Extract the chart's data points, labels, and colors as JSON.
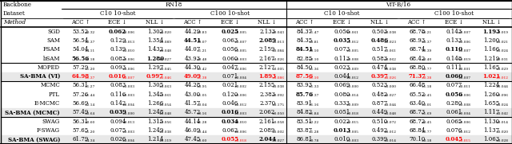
{
  "groups": [
    {
      "methods": [
        "SGD",
        "SAM",
        "FSAM",
        "bSAM"
      ],
      "data": [
        [
          "53.52",
          "0.32",
          "0.062",
          "0.006",
          "1.302",
          "0.020",
          "44.29",
          "0.83",
          "0.025",
          "0.005",
          "2.133",
          "0.043",
          "84.37",
          "1.47",
          "0.056",
          "0.061",
          "0.503",
          "0.038",
          "68.78",
          "0.21",
          "0.143",
          "0.007",
          "1.193",
          "0.019"
        ],
        [
          "56.54",
          "2.37",
          "0.129",
          "0.013",
          "1.354",
          "0.089",
          "44.51",
          "0.07",
          "0.063",
          "0.007",
          "2.089",
          "0.013",
          "84.35",
          "0.81",
          "0.035",
          "0.012",
          "0.486",
          "0.023",
          "68.93",
          "0.37",
          "0.133",
          "0.006",
          "1.200",
          "0.021"
        ],
        [
          "54.04",
          "4.11",
          "0.139",
          "0.010",
          "1.432",
          "0.048",
          "44.07",
          "1.21",
          "0.056",
          "0.005",
          "2.159",
          "0.084",
          "84.51",
          "0.50",
          "0.073",
          "0.005",
          "0.517",
          "0.061",
          "68.74",
          "0.39",
          "0.110",
          "0.007",
          "1.166",
          "0.024"
        ],
        [
          "56.56",
          "1.18",
          "0.083",
          "0.006",
          "1.280",
          "0.027",
          "43.93",
          "0.48",
          "0.060",
          "0.003",
          "2.167",
          "0.026",
          "82.85",
          "2.10",
          "0.113",
          "0.008",
          "0.583",
          "0.062",
          "68.42",
          "0.40",
          "0.148",
          "0.019",
          "1.219",
          "0.031"
        ]
      ],
      "bold": [
        [
          false,
          false,
          true,
          false,
          false,
          false,
          false,
          false,
          true,
          false,
          false,
          false,
          false,
          false,
          false,
          false,
          false,
          false,
          false,
          false,
          false,
          false,
          true,
          false
        ],
        [
          false,
          false,
          false,
          false,
          false,
          false,
          true,
          false,
          false,
          false,
          true,
          false,
          false,
          false,
          true,
          false,
          true,
          false,
          false,
          false,
          false,
          false,
          false,
          false
        ],
        [
          false,
          false,
          false,
          false,
          false,
          false,
          false,
          false,
          false,
          false,
          false,
          false,
          true,
          false,
          false,
          false,
          false,
          false,
          false,
          false,
          true,
          false,
          false,
          false
        ],
        [
          true,
          false,
          false,
          false,
          true,
          false,
          false,
          false,
          false,
          false,
          false,
          false,
          false,
          false,
          false,
          false,
          false,
          false,
          false,
          false,
          false,
          false,
          false,
          false
        ]
      ],
      "red": [
        [
          false,
          false,
          false,
          false,
          false,
          false,
          false,
          false,
          false,
          false,
          false,
          false,
          false,
          false,
          false,
          false,
          false,
          false,
          false,
          false,
          false,
          false,
          false,
          false
        ],
        [
          false,
          false,
          false,
          false,
          false,
          false,
          false,
          false,
          false,
          false,
          false,
          false,
          false,
          false,
          false,
          false,
          false,
          false,
          false,
          false,
          false,
          false,
          false,
          false
        ],
        [
          false,
          false,
          false,
          false,
          false,
          false,
          false,
          false,
          false,
          false,
          false,
          false,
          false,
          false,
          false,
          false,
          false,
          false,
          false,
          false,
          false,
          false,
          false,
          false
        ],
        [
          false,
          false,
          false,
          false,
          false,
          false,
          false,
          false,
          false,
          false,
          false,
          false,
          false,
          false,
          false,
          false,
          false,
          false,
          false,
          false,
          false,
          false,
          false,
          false
        ]
      ]
    },
    {
      "methods": [
        "MOPED",
        "SA-BMA (VI)"
      ],
      "data": [
        [
          "57.29",
          "1.20",
          "0.093",
          "0.006",
          "1.297",
          "0.045",
          "44.30",
          "0.42",
          "0.047",
          "0.006",
          "2.127",
          "0.005",
          "84.50",
          "1.36",
          "0.023",
          "0.009",
          "0.474",
          "0.038",
          "68.80",
          "0.77",
          "0.111",
          "0.001",
          "1.165",
          "0.029"
        ],
        [
          "64.98",
          "1.37",
          "0.016",
          "0.007",
          "0.997",
          "0.046",
          "49.09",
          "1.38",
          "0.071",
          "0.004",
          "1.893",
          "0.086",
          "87.56",
          "1.10",
          "0.044",
          "0.012",
          "0.397",
          "0.026",
          "71.37",
          "0.38",
          "0.060",
          "0.007",
          "1.021",
          "0.012"
        ]
      ],
      "bold": [
        [
          false,
          false,
          false,
          false,
          false,
          false,
          false,
          false,
          false,
          false,
          false,
          false,
          false,
          false,
          false,
          false,
          false,
          false,
          false,
          false,
          false,
          false,
          false,
          false
        ],
        [
          false,
          false,
          false,
          false,
          false,
          false,
          false,
          false,
          false,
          false,
          false,
          false,
          false,
          false,
          false,
          false,
          false,
          false,
          false,
          false,
          true,
          false,
          false,
          false
        ]
      ],
      "red": [
        [
          false,
          false,
          false,
          false,
          false,
          false,
          false,
          false,
          false,
          false,
          false,
          false,
          false,
          false,
          false,
          false,
          false,
          false,
          false,
          false,
          false,
          false,
          false,
          false
        ],
        [
          true,
          false,
          true,
          false,
          true,
          false,
          true,
          false,
          false,
          false,
          true,
          false,
          true,
          false,
          false,
          false,
          true,
          false,
          true,
          false,
          false,
          false,
          true,
          false
        ]
      ]
    },
    {
      "methods": [
        "MCMC",
        "PTL",
        "E-MCMC",
        "SA-BMA (MCMC)"
      ],
      "data": [
        [
          "56.31",
          "1.27",
          "0.083",
          "0.003",
          "1.305",
          "0.063",
          "44.28",
          "0.95",
          "0.021",
          "0.002",
          "2.155",
          "0.038",
          "83.93",
          "1.33",
          "0.069",
          "0.000",
          "0.523",
          "0.000",
          "66.48",
          "1.18",
          "0.077",
          "0.011",
          "1.224",
          "0.044"
        ],
        [
          "57.26",
          "1.44",
          "0.116",
          "0.003",
          "1.345",
          "0.061",
          "43.00",
          "1.05",
          "0.120",
          "0.006",
          "2.383",
          "0.092",
          "85.76",
          "1.37",
          "0.080",
          "0.014",
          "0.482",
          "0.027",
          "65.52",
          "2.45",
          "0.056",
          "0.006",
          "1.260",
          "0.096"
        ],
        [
          "56.69",
          "2.14",
          "0.142",
          "0.004",
          "1.266",
          "0.054",
          "41.57",
          "0.04",
          "0.046",
          "0.012",
          "2.370",
          "0.175",
          "83.91",
          "1.16",
          "0.333",
          "0.009",
          "0.877",
          "0.044",
          "63.40",
          "0.01",
          "0.280",
          "0.008",
          "1.655",
          "0.024"
        ],
        [
          "57.49",
          "0.64",
          "0.039",
          "0.000",
          "1.248",
          "0.048",
          "45.72",
          "0.56",
          "0.016",
          "0.003",
          "2.062",
          "0.050",
          "84.82",
          "1.84",
          "0.051",
          "0.018",
          "0.449",
          "0.048",
          "68.73",
          "1.69",
          "0.061",
          "0.004",
          "1.117",
          "0.042"
        ]
      ],
      "bold": [
        [
          false,
          false,
          false,
          false,
          false,
          false,
          false,
          false,
          false,
          false,
          false,
          false,
          false,
          false,
          false,
          false,
          false,
          false,
          false,
          false,
          false,
          false,
          false,
          false
        ],
        [
          false,
          false,
          false,
          false,
          false,
          false,
          false,
          false,
          false,
          false,
          false,
          false,
          true,
          false,
          false,
          false,
          false,
          false,
          false,
          false,
          true,
          false,
          false,
          false
        ],
        [
          false,
          false,
          false,
          false,
          false,
          false,
          false,
          false,
          false,
          false,
          false,
          false,
          false,
          false,
          false,
          false,
          false,
          false,
          false,
          false,
          false,
          false,
          false,
          false
        ],
        [
          false,
          false,
          true,
          false,
          false,
          false,
          false,
          false,
          true,
          false,
          false,
          false,
          false,
          false,
          false,
          false,
          false,
          false,
          false,
          false,
          false,
          false,
          false,
          false
        ]
      ],
      "red": [
        [
          false,
          false,
          false,
          false,
          false,
          false,
          false,
          false,
          false,
          false,
          false,
          false,
          false,
          false,
          false,
          false,
          false,
          false,
          false,
          false,
          false,
          false,
          false,
          false
        ],
        [
          false,
          false,
          false,
          false,
          false,
          false,
          false,
          false,
          false,
          false,
          false,
          false,
          false,
          false,
          false,
          false,
          false,
          false,
          false,
          false,
          false,
          false,
          false,
          false
        ],
        [
          false,
          false,
          false,
          false,
          false,
          false,
          false,
          false,
          false,
          false,
          false,
          false,
          false,
          false,
          false,
          false,
          false,
          false,
          false,
          false,
          false,
          false,
          false,
          false
        ],
        [
          false,
          false,
          false,
          false,
          false,
          false,
          false,
          false,
          false,
          false,
          false,
          false,
          false,
          false,
          false,
          false,
          false,
          false,
          false,
          false,
          false,
          false,
          false,
          false
        ]
      ]
    },
    {
      "methods": [
        "SWAG",
        "F-SWAG",
        "SA-BMA (SWAG)"
      ],
      "data": [
        [
          "56.31",
          "0.60",
          "0.094",
          "0.013",
          "1.315",
          "0.056",
          "44.14",
          "1.28",
          "0.034",
          "0.010",
          "2.161",
          "0.058",
          "83.51",
          "2.22",
          "0.022",
          "0.015",
          "0.510",
          "0.072",
          "68.72",
          "0.45",
          "0.065",
          "0.006",
          "1.130",
          "0.014"
        ],
        [
          "57.65",
          "1.20",
          "0.075",
          "0.003",
          "1.249",
          "0.038",
          "46.09",
          "0.44",
          "0.062",
          "0.006",
          "2.089",
          "0.002",
          "83.87",
          "1.28",
          "0.013",
          "0.005",
          "0.492",
          "0.012",
          "68.84",
          "0.77",
          "0.076",
          "0.012",
          "1.137",
          "0.020"
        ],
        [
          "61.79",
          "4.34",
          "0.026",
          "0.004",
          "1.214",
          "0.119",
          "47.45",
          "0.60",
          "0.055",
          "0.018",
          "2.044",
          "0.027",
          "86.81",
          "0.78",
          "0.010",
          "0.003",
          "0.399",
          "0.014",
          "70.10",
          "0.18",
          "0.045",
          "0.015",
          "1.063",
          "0.028"
        ]
      ],
      "bold": [
        [
          false,
          false,
          false,
          false,
          false,
          false,
          false,
          false,
          true,
          false,
          false,
          false,
          false,
          false,
          false,
          false,
          false,
          false,
          false,
          false,
          false,
          false,
          false,
          false
        ],
        [
          false,
          false,
          false,
          false,
          false,
          false,
          false,
          false,
          false,
          false,
          false,
          false,
          false,
          false,
          true,
          false,
          false,
          false,
          false,
          false,
          false,
          false,
          false,
          false
        ],
        [
          false,
          false,
          false,
          false,
          false,
          false,
          false,
          false,
          false,
          false,
          true,
          false,
          false,
          false,
          false,
          false,
          false,
          false,
          false,
          false,
          false,
          false,
          false,
          false
        ]
      ],
      "red": [
        [
          false,
          false,
          false,
          false,
          false,
          false,
          false,
          false,
          false,
          false,
          false,
          false,
          false,
          false,
          false,
          false,
          false,
          false,
          false,
          false,
          false,
          false,
          false,
          false
        ],
        [
          false,
          false,
          false,
          false,
          false,
          false,
          false,
          false,
          false,
          false,
          false,
          false,
          false,
          false,
          false,
          false,
          false,
          false,
          false,
          false,
          false,
          false,
          false,
          false
        ],
        [
          false,
          false,
          false,
          false,
          false,
          false,
          false,
          false,
          true,
          false,
          false,
          false,
          false,
          false,
          false,
          false,
          false,
          false,
          false,
          false,
          true,
          false,
          false,
          false
        ]
      ]
    }
  ],
  "col_groups": [
    "C10 10-shot",
    "C100 10-shot",
    "C10 10-shot",
    "C100 10-shot"
  ],
  "col_headers": [
    "ACC ↑",
    "ECE ↓",
    "NLL ↓"
  ],
  "backbone_labels": [
    "RN18",
    "ViT-B/16"
  ],
  "bg_color": "#ffffff",
  "sabma_bg": "#e8e8e8",
  "fontsize": 5.0,
  "sub_fontsize": 3.2,
  "header_fontsize": 5.2
}
